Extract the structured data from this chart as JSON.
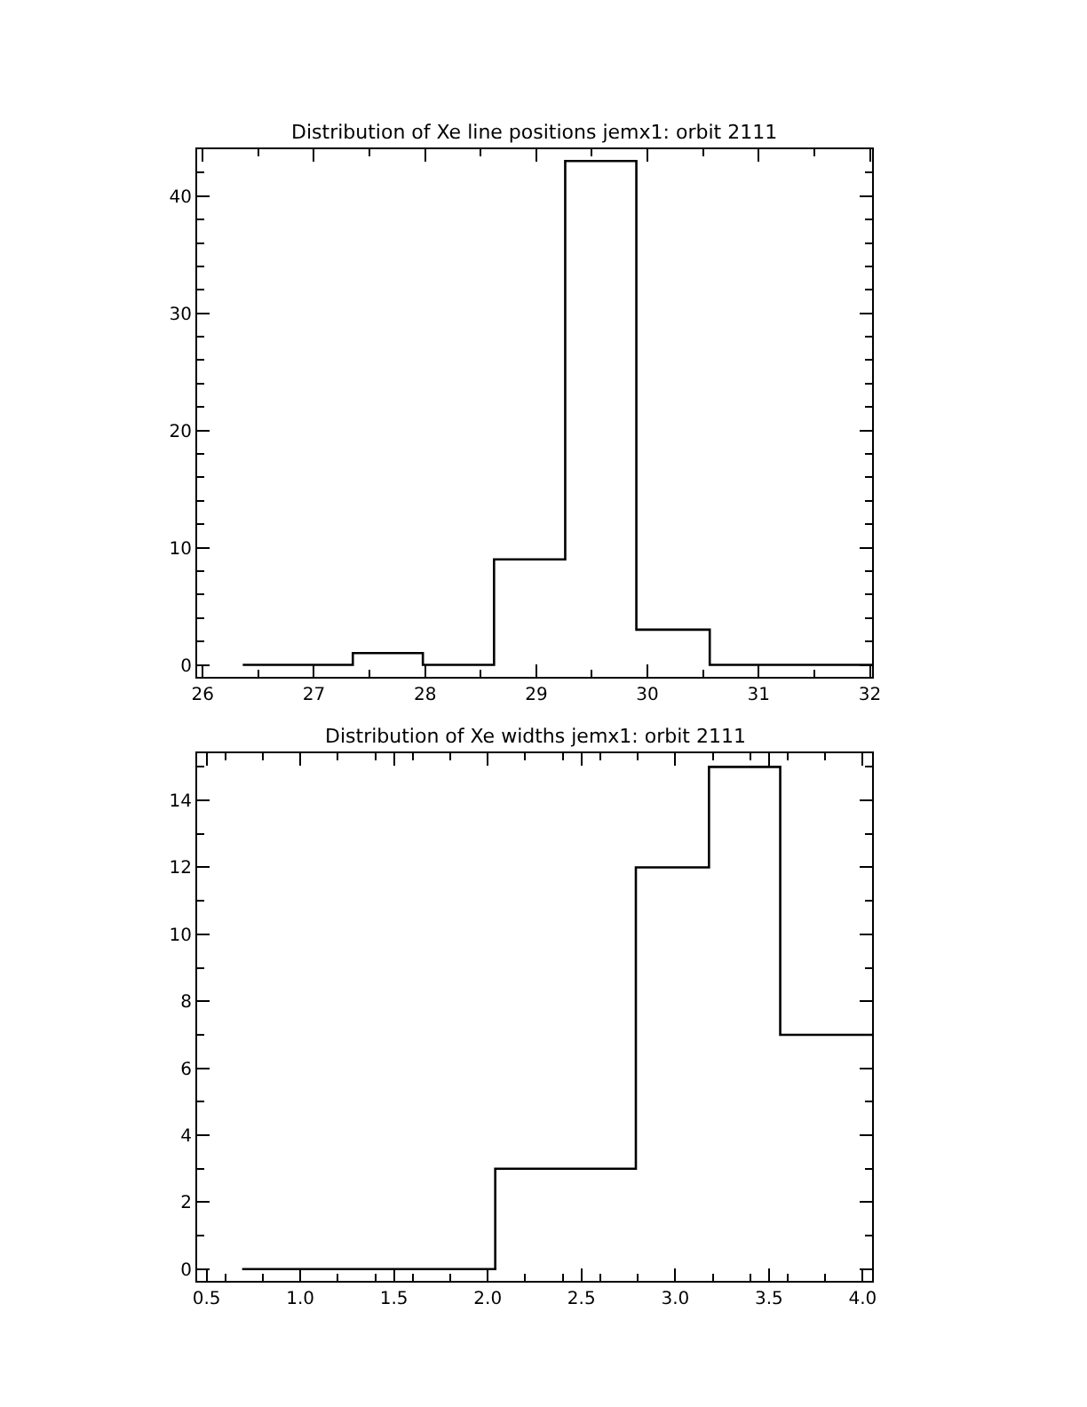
{
  "chart_data": [
    {
      "type": "histogram",
      "title": "Distribution of Xe line positions jemx1: orbit 2111",
      "bins": [
        26.36,
        27.35,
        27.98,
        28.62,
        29.26,
        29.9,
        30.56,
        32.02
      ],
      "values": [
        0,
        1,
        0,
        9,
        43,
        3,
        0
      ],
      "color": "#000000",
      "xlim": [
        25.95,
        32.02
      ],
      "ylim": [
        -1,
        44
      ],
      "xticks": [
        26,
        27,
        28,
        29,
        30,
        31,
        32
      ],
      "yticks": [
        0,
        10,
        20,
        30,
        40
      ]
    },
    {
      "type": "histogram",
      "title": "Distribution of Xe widths jemx1: orbit 2111",
      "bins": [
        0.69,
        2.04,
        2.79,
        3.18,
        3.56,
        4.05
      ],
      "values": [
        0,
        3,
        12,
        15,
        7
      ],
      "color": "#000000",
      "xlim": [
        0.45,
        4.05
      ],
      "ylim": [
        -0.35,
        15.4
      ],
      "xticks": [
        {
          "value": 0.5,
          "label": "0.5"
        },
        {
          "value": 1,
          "label": "1.0"
        },
        {
          "value": 1.5,
          "label": "1.5"
        },
        {
          "value": 2,
          "label": "2.0"
        },
        {
          "value": 2.5,
          "label": "2.5"
        },
        {
          "value": 3,
          "label": "3.0"
        },
        {
          "value": 3.5,
          "label": "3.5"
        },
        {
          "value": 4,
          "label": "4.0"
        }
      ],
      "yticks": [
        0,
        2,
        4,
        6,
        8,
        10,
        12,
        14
      ]
    }
  ]
}
